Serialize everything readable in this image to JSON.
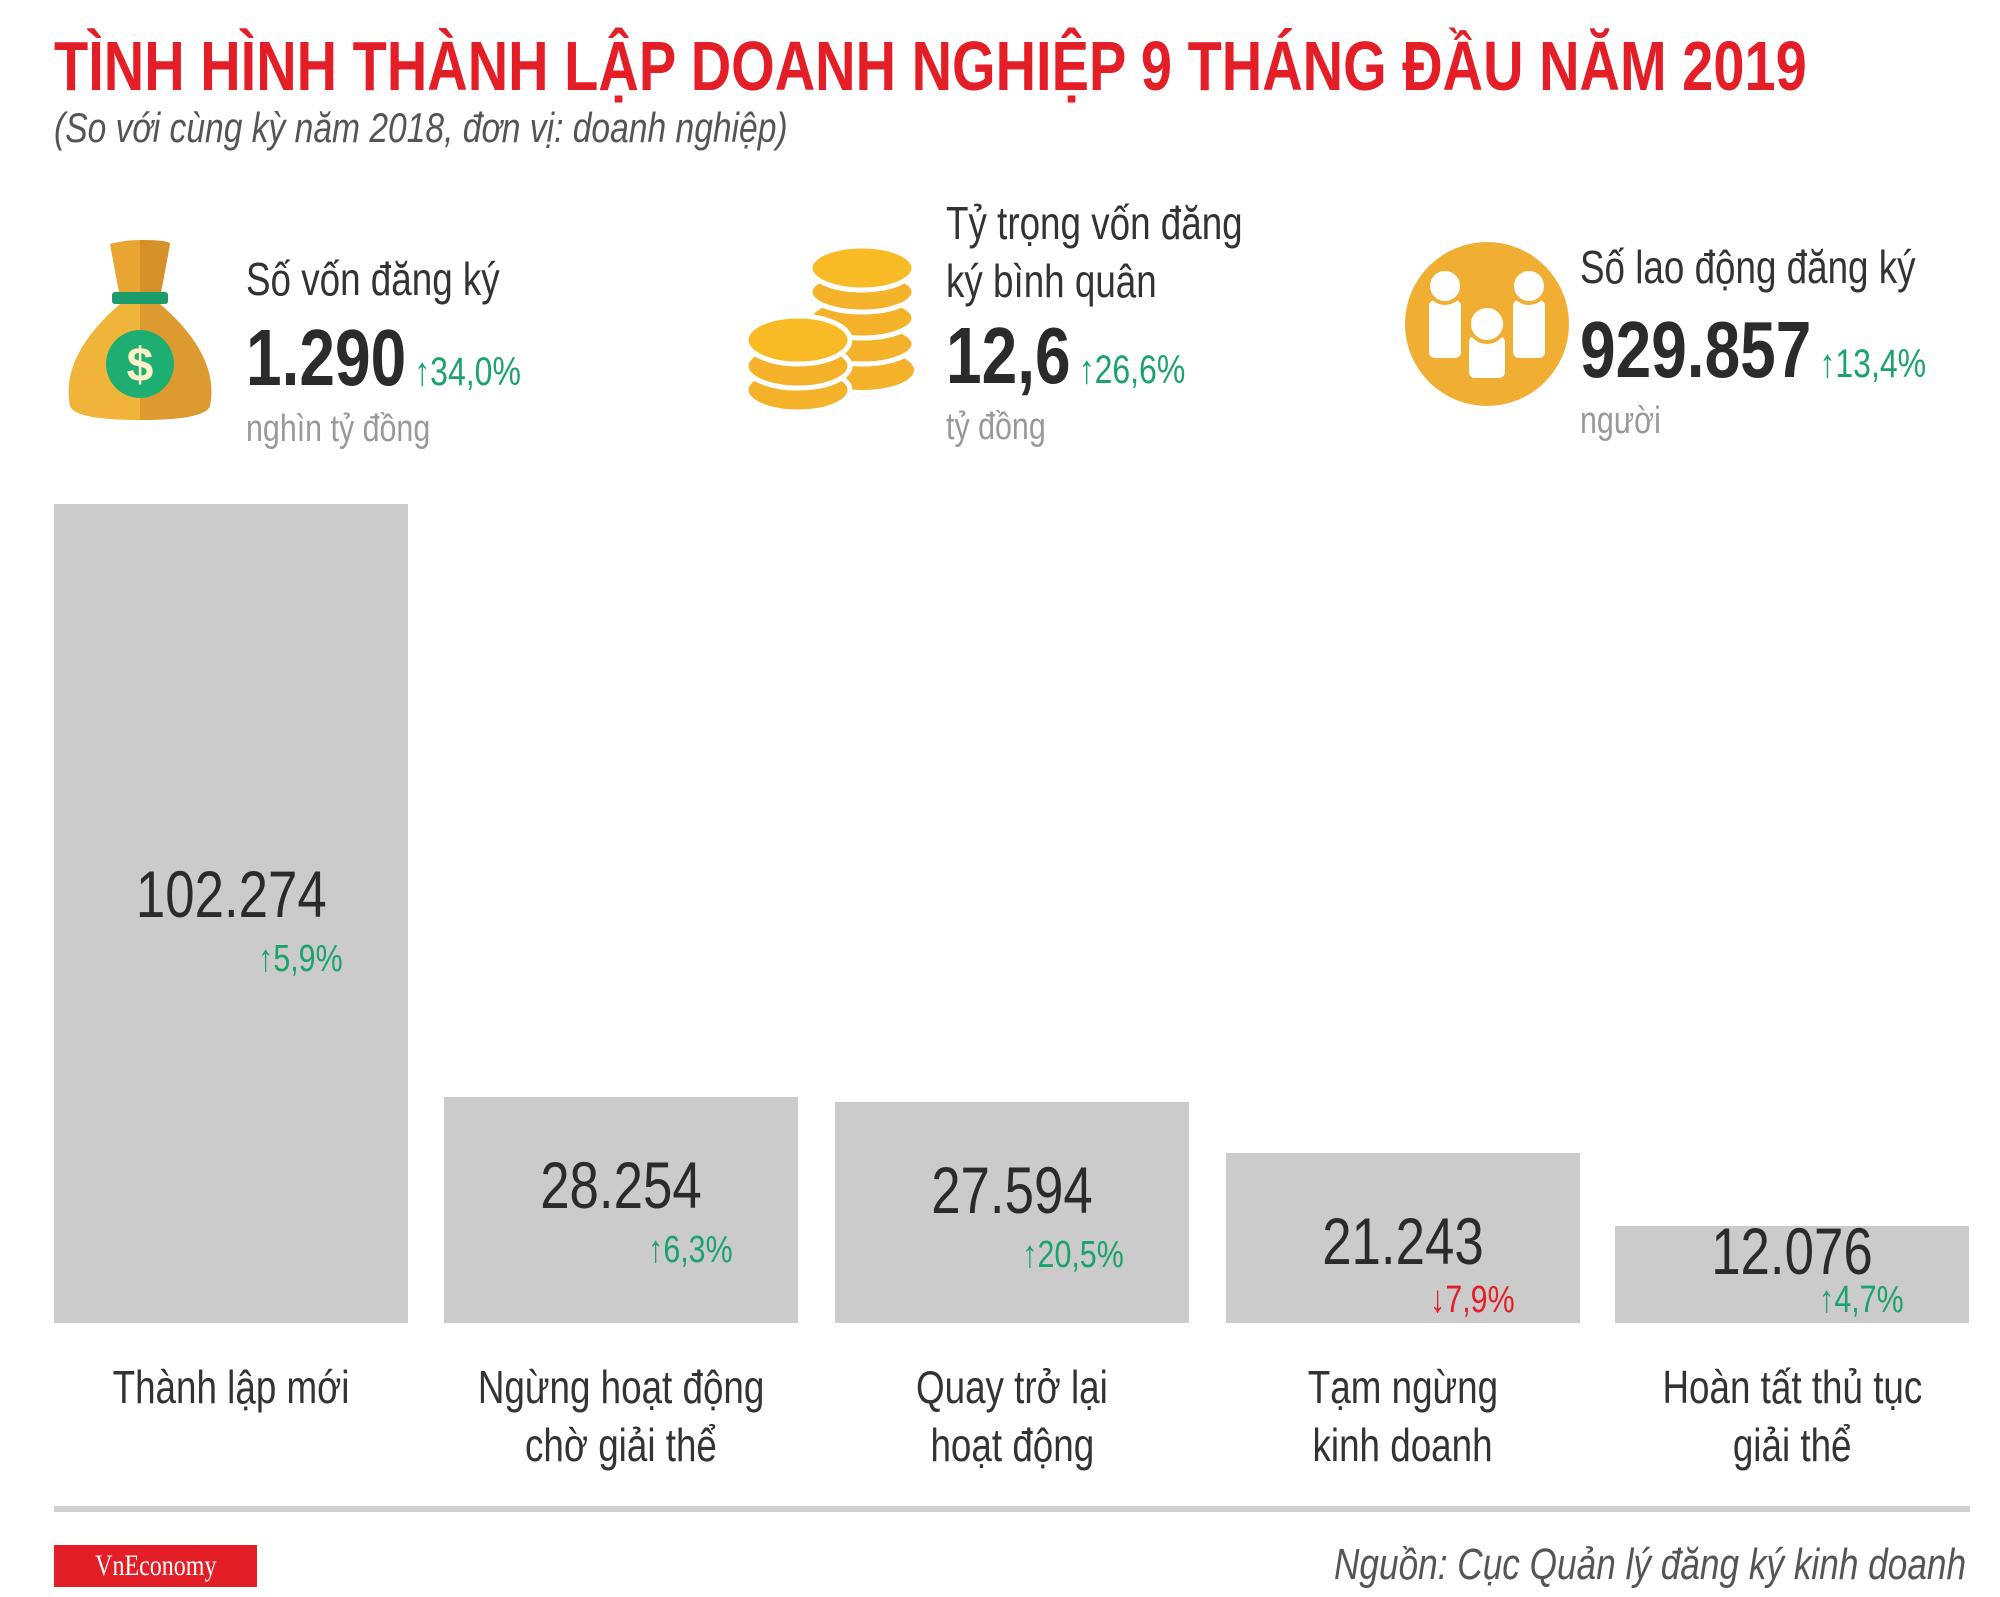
{
  "header": {
    "title": "TÌNH HÌNH THÀNH LẬP DOANH NGHIỆP 9 THÁNG ĐẦU NĂM 2019",
    "subtitle": "(So với cùng kỳ năm 2018, đơn vị: doanh nghiệp)"
  },
  "kpis": [
    {
      "icon": "money-bag-icon",
      "label_lines": [
        "Số vốn đăng ký"
      ],
      "value": "1.290",
      "change": "34,0%",
      "direction": "up",
      "unit": "nghìn tỷ đồng"
    },
    {
      "icon": "coins-icon",
      "label_lines": [
        "Tỷ trọng vốn đăng",
        "ký bình quân"
      ],
      "value": "12,6",
      "change": "26,6%",
      "direction": "up",
      "unit": "tỷ đồng"
    },
    {
      "icon": "people-icon",
      "label_lines": [
        "Số lao động đăng ký"
      ],
      "value": "929.857",
      "change": "13,4%",
      "direction": "up",
      "unit": "người"
    }
  ],
  "colors": {
    "title": "#e41e26",
    "up": "#1aa36b",
    "down": "#e41e26",
    "bar": "#cccbcc",
    "icon": "#f4b12a"
  },
  "chart_data": {
    "type": "bar",
    "categories": [
      "Thành lập mới",
      "Ngừng hoạt động chờ giải thể",
      "Quay trở lại hoạt động",
      "Tạm ngừng kinh doanh",
      "Hoàn tất thủ tục giải thể"
    ],
    "category_lines": [
      [
        "Thành lập mới"
      ],
      [
        "Ngừng hoạt động",
        "chờ giải thể"
      ],
      [
        "Quay trở lại",
        "hoạt động"
      ],
      [
        "Tạm ngừng",
        "kinh doanh"
      ],
      [
        "Hoàn tất thủ tục",
        "giải thể"
      ]
    ],
    "values": [
      102274,
      28254,
      27594,
      21243,
      12076
    ],
    "value_labels": [
      "102.274",
      "28.254",
      "27.594",
      "21.243",
      "12.076"
    ],
    "changes": [
      "5,9%",
      "6,3%",
      "20,5%",
      "7,9%",
      "4,7%"
    ],
    "directions": [
      "up",
      "up",
      "up",
      "down",
      "up"
    ],
    "ylim": [
      0,
      102274
    ],
    "grid": false
  },
  "footer": {
    "logo": "VnEconomy",
    "source": "Nguồn: Cục Quản lý đăng ký kinh doanh"
  }
}
